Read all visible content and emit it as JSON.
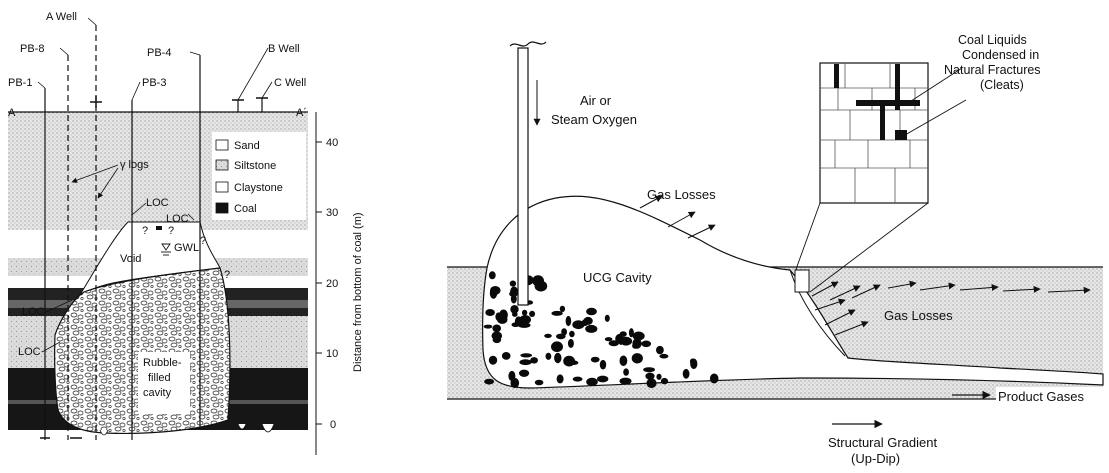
{
  "left": {
    "wells": [
      "A Well",
      "PB-8",
      "PB-4",
      "B Well",
      "PB-1",
      "PB-3",
      "C Well"
    ],
    "section_start": "A",
    "section_end": "A´",
    "gamma_logs": "γ logs",
    "loc": "LOC",
    "gwl": "GWL",
    "void": "Void",
    "rubble": [
      "Rubble-",
      "filled",
      "cavity"
    ],
    "legend": [
      "Sand",
      "Siltstone",
      "Claystone",
      "Coal"
    ],
    "qmarks": "?",
    "axis_label": "Distance from bottom of coal (m)",
    "ticks": [
      "40",
      "30",
      "20",
      "10",
      "0"
    ]
  },
  "right": {
    "air": [
      "Air or",
      "Steam Oxygen"
    ],
    "coal_liquids": [
      "Coal Liquids",
      "Condensed in",
      "Natural Fractures",
      "(Cleats)"
    ],
    "gas_losses_top": "Gas Losses",
    "ucg_cavity": "UCG Cavity",
    "gas_losses_right": "Gas Losses",
    "product_gases": "Product Gases",
    "structural": [
      "Structural Gradient",
      "(Up-Dip)"
    ]
  }
}
